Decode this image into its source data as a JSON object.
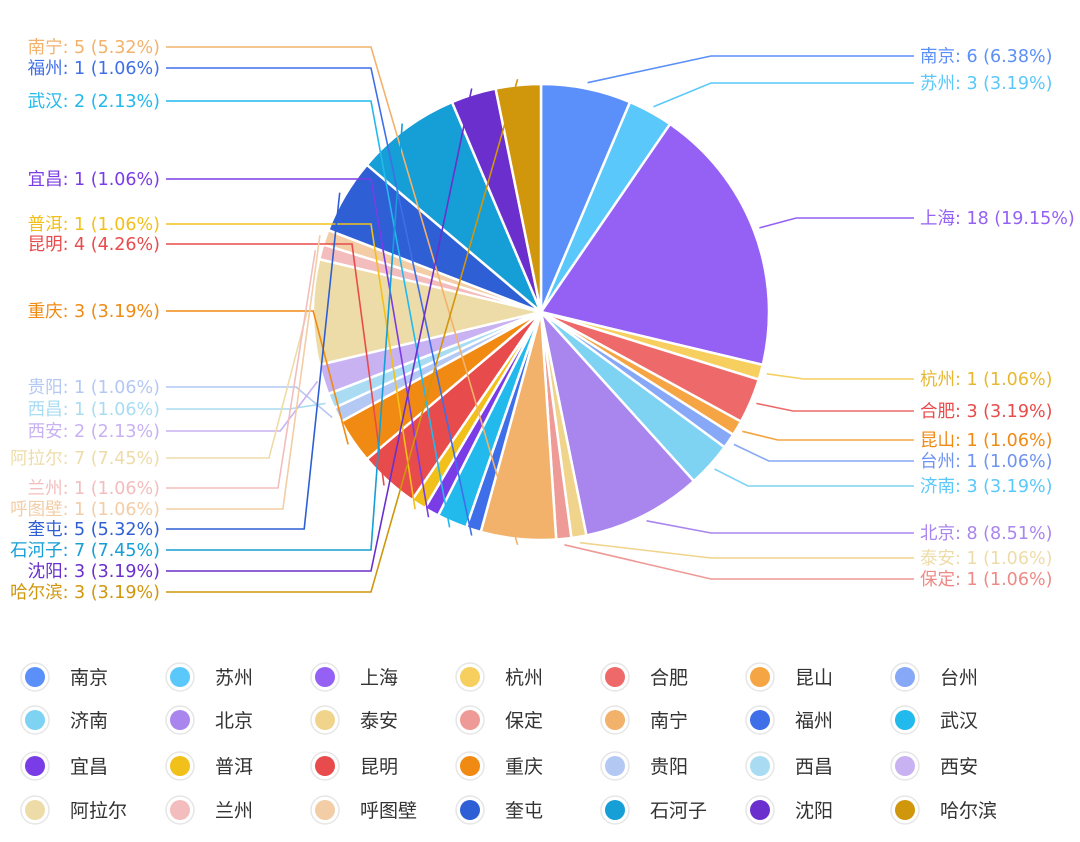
{
  "chart_data": {
    "type": "pie",
    "title": "",
    "legend_position": "bottom",
    "slices": [
      {
        "label": "南京",
        "value": 6,
        "percent": "6.38%",
        "color": "#5B8FF9"
      },
      {
        "label": "苏州",
        "value": 3,
        "percent": "3.19%",
        "color": "#5AC8FA"
      },
      {
        "label": "上海",
        "value": 18,
        "percent": "19.15%",
        "color": "#9461F4"
      },
      {
        "label": "杭州",
        "value": 1,
        "percent": "1.06%",
        "color": "#F6CF5E"
      },
      {
        "label": "合肥",
        "value": 3,
        "percent": "3.19%",
        "color": "#EE6A6A"
      },
      {
        "label": "昆山",
        "value": 1,
        "percent": "1.06%",
        "color": "#F5A544"
      },
      {
        "label": "台州",
        "value": 1,
        "percent": "1.06%",
        "color": "#86A8F6"
      },
      {
        "label": "济南",
        "value": 3,
        "percent": "3.19%",
        "color": "#7ED3F2"
      },
      {
        "label": "北京",
        "value": 8,
        "percent": "8.51%",
        "color": "#A985EE"
      },
      {
        "label": "泰安",
        "value": 1,
        "percent": "1.06%",
        "color": "#F0D48C"
      },
      {
        "label": "保定",
        "value": 1,
        "percent": "1.06%",
        "color": "#EE9A96"
      },
      {
        "label": "南宁",
        "value": 5,
        "percent": "5.32%",
        "color": "#F2B26B"
      },
      {
        "label": "福州",
        "value": 1,
        "percent": "1.06%",
        "color": "#3F6FE8"
      },
      {
        "label": "武汉",
        "value": 2,
        "percent": "2.13%",
        "color": "#22B9ED"
      },
      {
        "label": "宜昌",
        "value": 1,
        "percent": "1.06%",
        "color": "#7A3CE6"
      },
      {
        "label": "普洱",
        "value": 1,
        "percent": "1.06%",
        "color": "#F2C01A"
      },
      {
        "label": "昆明",
        "value": 4,
        "percent": "4.26%",
        "color": "#E84B4B"
      },
      {
        "label": "重庆",
        "value": 3,
        "percent": "3.19%",
        "color": "#F08A12"
      },
      {
        "label": "贵阳",
        "value": 1,
        "percent": "1.06%",
        "color": "#B4C8F4"
      },
      {
        "label": "西昌",
        "value": 1,
        "percent": "1.06%",
        "color": "#A9DCF3"
      },
      {
        "label": "西安",
        "value": 2,
        "percent": "2.13%",
        "color": "#C8B2F2"
      },
      {
        "label": "阿拉尔",
        "value": 7,
        "percent": "7.45%",
        "color": "#EEDCA8"
      },
      {
        "label": "兰州",
        "value": 1,
        "percent": "1.06%",
        "color": "#F3BDBD"
      },
      {
        "label": "呼图壁",
        "value": 1,
        "percent": "1.06%",
        "color": "#F2CDA6"
      },
      {
        "label": "奎屯",
        "value": 5,
        "percent": "5.32%",
        "color": "#2E5FD4"
      },
      {
        "label": "石河子",
        "value": 7,
        "percent": "7.45%",
        "color": "#169ED6"
      },
      {
        "label": "沈阳",
        "value": 3,
        "percent": "3.19%",
        "color": "#6A2FCC"
      },
      {
        "label": "哈尔滨",
        "value": 3,
        "percent": "3.19%",
        "color": "#D0960C"
      }
    ]
  },
  "label_colors": {
    "南京": "#5B8FF9",
    "苏州": "#5AC8FA",
    "上海": "#9461F4",
    "杭州": "#E8B730",
    "合肥": "#E84B4B",
    "昆山": "#F08A12",
    "台州": "#6F93F0",
    "济南": "#5AC8FA",
    "北京": "#A985EE",
    "泰安": "#EEDCA8",
    "保定": "#EE8A86",
    "南宁": "#F2B26B",
    "福州": "#3F6FE8",
    "武汉": "#22B9ED",
    "宜昌": "#7A3CE6",
    "普洱": "#F2C01A",
    "昆明": "#E84B4B",
    "重庆": "#F08A12",
    "贵阳": "#B4C8F4",
    "西昌": "#A9DCF3",
    "西安": "#C8B2F2",
    "阿拉尔": "#EEDCA8",
    "兰州": "#F3BDBD",
    "呼图壁": "#F2CDA6",
    "奎屯": "#2E5FD4",
    "石河子": "#169ED6",
    "沈阳": "#6A2FCC",
    "哈尔滨": "#D0960C"
  }
}
